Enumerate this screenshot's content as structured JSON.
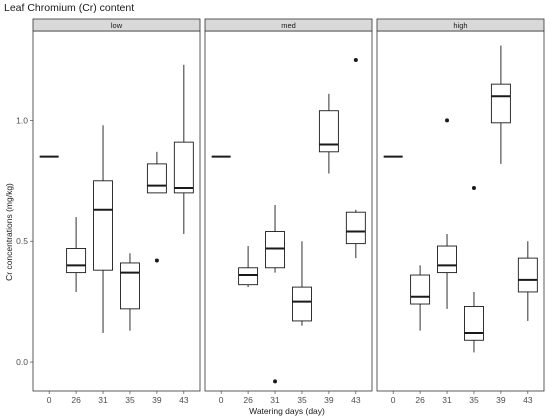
{
  "chart_data": {
    "type": "boxplot",
    "title": "Leaf Chromium (Cr) content",
    "xlabel": "Watering days (day)",
    "ylabel": "Cr concentrations (mg/kg)",
    "ylim": [
      -0.12,
      1.37
    ],
    "yticks": [
      0.0,
      0.5,
      1.0
    ],
    "ytick_labels": [
      "0.0",
      "0.5",
      "1.0"
    ],
    "categories": [
      "0",
      "26",
      "31",
      "35",
      "39",
      "43"
    ],
    "facets": [
      {
        "name": "low",
        "boxes": [
          {
            "x": "0",
            "min": 0.85,
            "q1": 0.85,
            "median": 0.85,
            "q3": 0.85,
            "max": 0.85,
            "outliers": []
          },
          {
            "x": "26",
            "min": 0.29,
            "q1": 0.37,
            "median": 0.4,
            "q3": 0.47,
            "max": 0.6,
            "outliers": []
          },
          {
            "x": "31",
            "min": 0.12,
            "q1": 0.38,
            "median": 0.63,
            "q3": 0.75,
            "max": 0.98,
            "outliers": []
          },
          {
            "x": "35",
            "min": 0.13,
            "q1": 0.22,
            "median": 0.37,
            "q3": 0.41,
            "max": 0.45,
            "outliers": []
          },
          {
            "x": "39",
            "min": 0.7,
            "q1": 0.7,
            "median": 0.73,
            "q3": 0.82,
            "max": 0.87,
            "outliers": [
              0.42
            ]
          },
          {
            "x": "43",
            "min": 0.53,
            "q1": 0.7,
            "median": 0.72,
            "q3": 0.91,
            "max": 1.23,
            "outliers": []
          }
        ]
      },
      {
        "name": "med",
        "boxes": [
          {
            "x": "0",
            "min": 0.85,
            "q1": 0.85,
            "median": 0.85,
            "q3": 0.85,
            "max": 0.85,
            "outliers": []
          },
          {
            "x": "26",
            "min": 0.31,
            "q1": 0.32,
            "median": 0.36,
            "q3": 0.39,
            "max": 0.48,
            "outliers": []
          },
          {
            "x": "31",
            "min": 0.37,
            "q1": 0.39,
            "median": 0.47,
            "q3": 0.54,
            "max": 0.65,
            "outliers": [
              -0.08
            ]
          },
          {
            "x": "35",
            "min": 0.15,
            "q1": 0.17,
            "median": 0.25,
            "q3": 0.31,
            "max": 0.5,
            "outliers": []
          },
          {
            "x": "39",
            "min": 0.78,
            "q1": 0.87,
            "median": 0.9,
            "q3": 1.04,
            "max": 1.11,
            "outliers": []
          },
          {
            "x": "43",
            "min": 0.43,
            "q1": 0.49,
            "median": 0.54,
            "q3": 0.62,
            "max": 0.63,
            "outliers": [
              1.25
            ]
          }
        ]
      },
      {
        "name": "high",
        "boxes": [
          {
            "x": "0",
            "min": 0.85,
            "q1": 0.85,
            "median": 0.85,
            "q3": 0.85,
            "max": 0.85,
            "outliers": []
          },
          {
            "x": "26",
            "min": 0.13,
            "q1": 0.24,
            "median": 0.27,
            "q3": 0.36,
            "max": 0.4,
            "outliers": []
          },
          {
            "x": "31",
            "min": 0.22,
            "q1": 0.37,
            "median": 0.4,
            "q3": 0.48,
            "max": 0.53,
            "outliers": [
              1.0
            ]
          },
          {
            "x": "35",
            "min": 0.04,
            "q1": 0.09,
            "median": 0.12,
            "q3": 0.23,
            "max": 0.29,
            "outliers": [
              0.72
            ]
          },
          {
            "x": "39",
            "min": 0.82,
            "q1": 0.99,
            "median": 1.1,
            "q3": 1.15,
            "max": 1.31,
            "outliers": []
          },
          {
            "x": "43",
            "min": 0.17,
            "q1": 0.29,
            "median": 0.34,
            "q3": 0.43,
            "max": 0.5,
            "outliers": []
          }
        ]
      }
    ],
    "grid": false,
    "legend": "none"
  }
}
